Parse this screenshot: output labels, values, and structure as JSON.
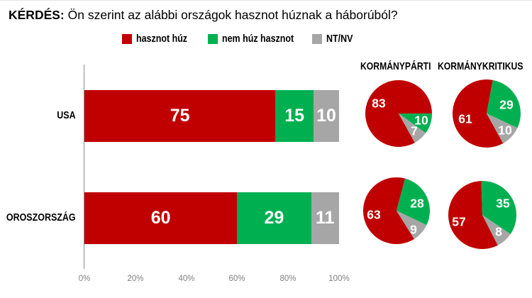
{
  "title": {
    "prefix": "KÉRDÉS:",
    "question": " Ön szerint az alábbi országok hasznot húznak a háborúból?"
  },
  "colors": {
    "hasznot_huz": "#c00000",
    "nem_huz_hasznot": "#00b050",
    "nt_nv": "#a6a6a6"
  },
  "legend": [
    {
      "label": "hasznot húz",
      "color": "#c00000"
    },
    {
      "label": "nem húz hasznot",
      "color": "#00b050"
    },
    {
      "label": "NT/NV",
      "color": "#a6a6a6"
    }
  ],
  "pie_headers": [
    "KORMÁNYPÁRTI",
    "KORMÁNYKRITIKUS"
  ],
  "chart_data": [
    {
      "type": "bar",
      "orientation": "horizontal",
      "stacked": true,
      "title": "KÉRDÉS: Ön szerint az alábbi országok hasznot húznak a háborúból?",
      "categories": [
        "USA",
        "OROSZORSZÁG"
      ],
      "series": [
        {
          "name": "hasznot húz",
          "values": [
            75,
            60
          ],
          "color": "#c00000"
        },
        {
          "name": "nem húz hasznot",
          "values": [
            15,
            29
          ],
          "color": "#00b050"
        },
        {
          "name": "NT/NV",
          "values": [
            10,
            11
          ],
          "color": "#a6a6a6"
        }
      ],
      "xlim": [
        0,
        100
      ],
      "xticks": [
        "0%",
        "20%",
        "40%",
        "60%",
        "80%",
        "100%"
      ],
      "xlabel": "",
      "ylabel": "",
      "grid": false,
      "legend_position": "top"
    },
    {
      "type": "pie",
      "group": "KORMÁNYPÁRTI",
      "category": "USA",
      "labels": [
        "hasznot húz",
        "nem húz hasznot",
        "NT/NV"
      ],
      "values": [
        83,
        10,
        7
      ]
    },
    {
      "type": "pie",
      "group": "KORMÁNYKRITIKUS",
      "category": "USA",
      "labels": [
        "hasznot húz",
        "nem húz hasznot",
        "NT/NV"
      ],
      "values": [
        61,
        29,
        10
      ]
    },
    {
      "type": "pie",
      "group": "KORMÁNYPÁRTI",
      "category": "OROSZORSZÁG",
      "labels": [
        "hasznot húz",
        "nem húz hasznot",
        "NT/NV"
      ],
      "values": [
        63,
        28,
        9
      ]
    },
    {
      "type": "pie",
      "group": "KORMÁNYKRITIKUS",
      "category": "OROSZORSZÁG",
      "labels": [
        "hasznot húz",
        "nem húz hasznot",
        "NT/NV"
      ],
      "values": [
        57,
        35,
        8
      ]
    }
  ]
}
